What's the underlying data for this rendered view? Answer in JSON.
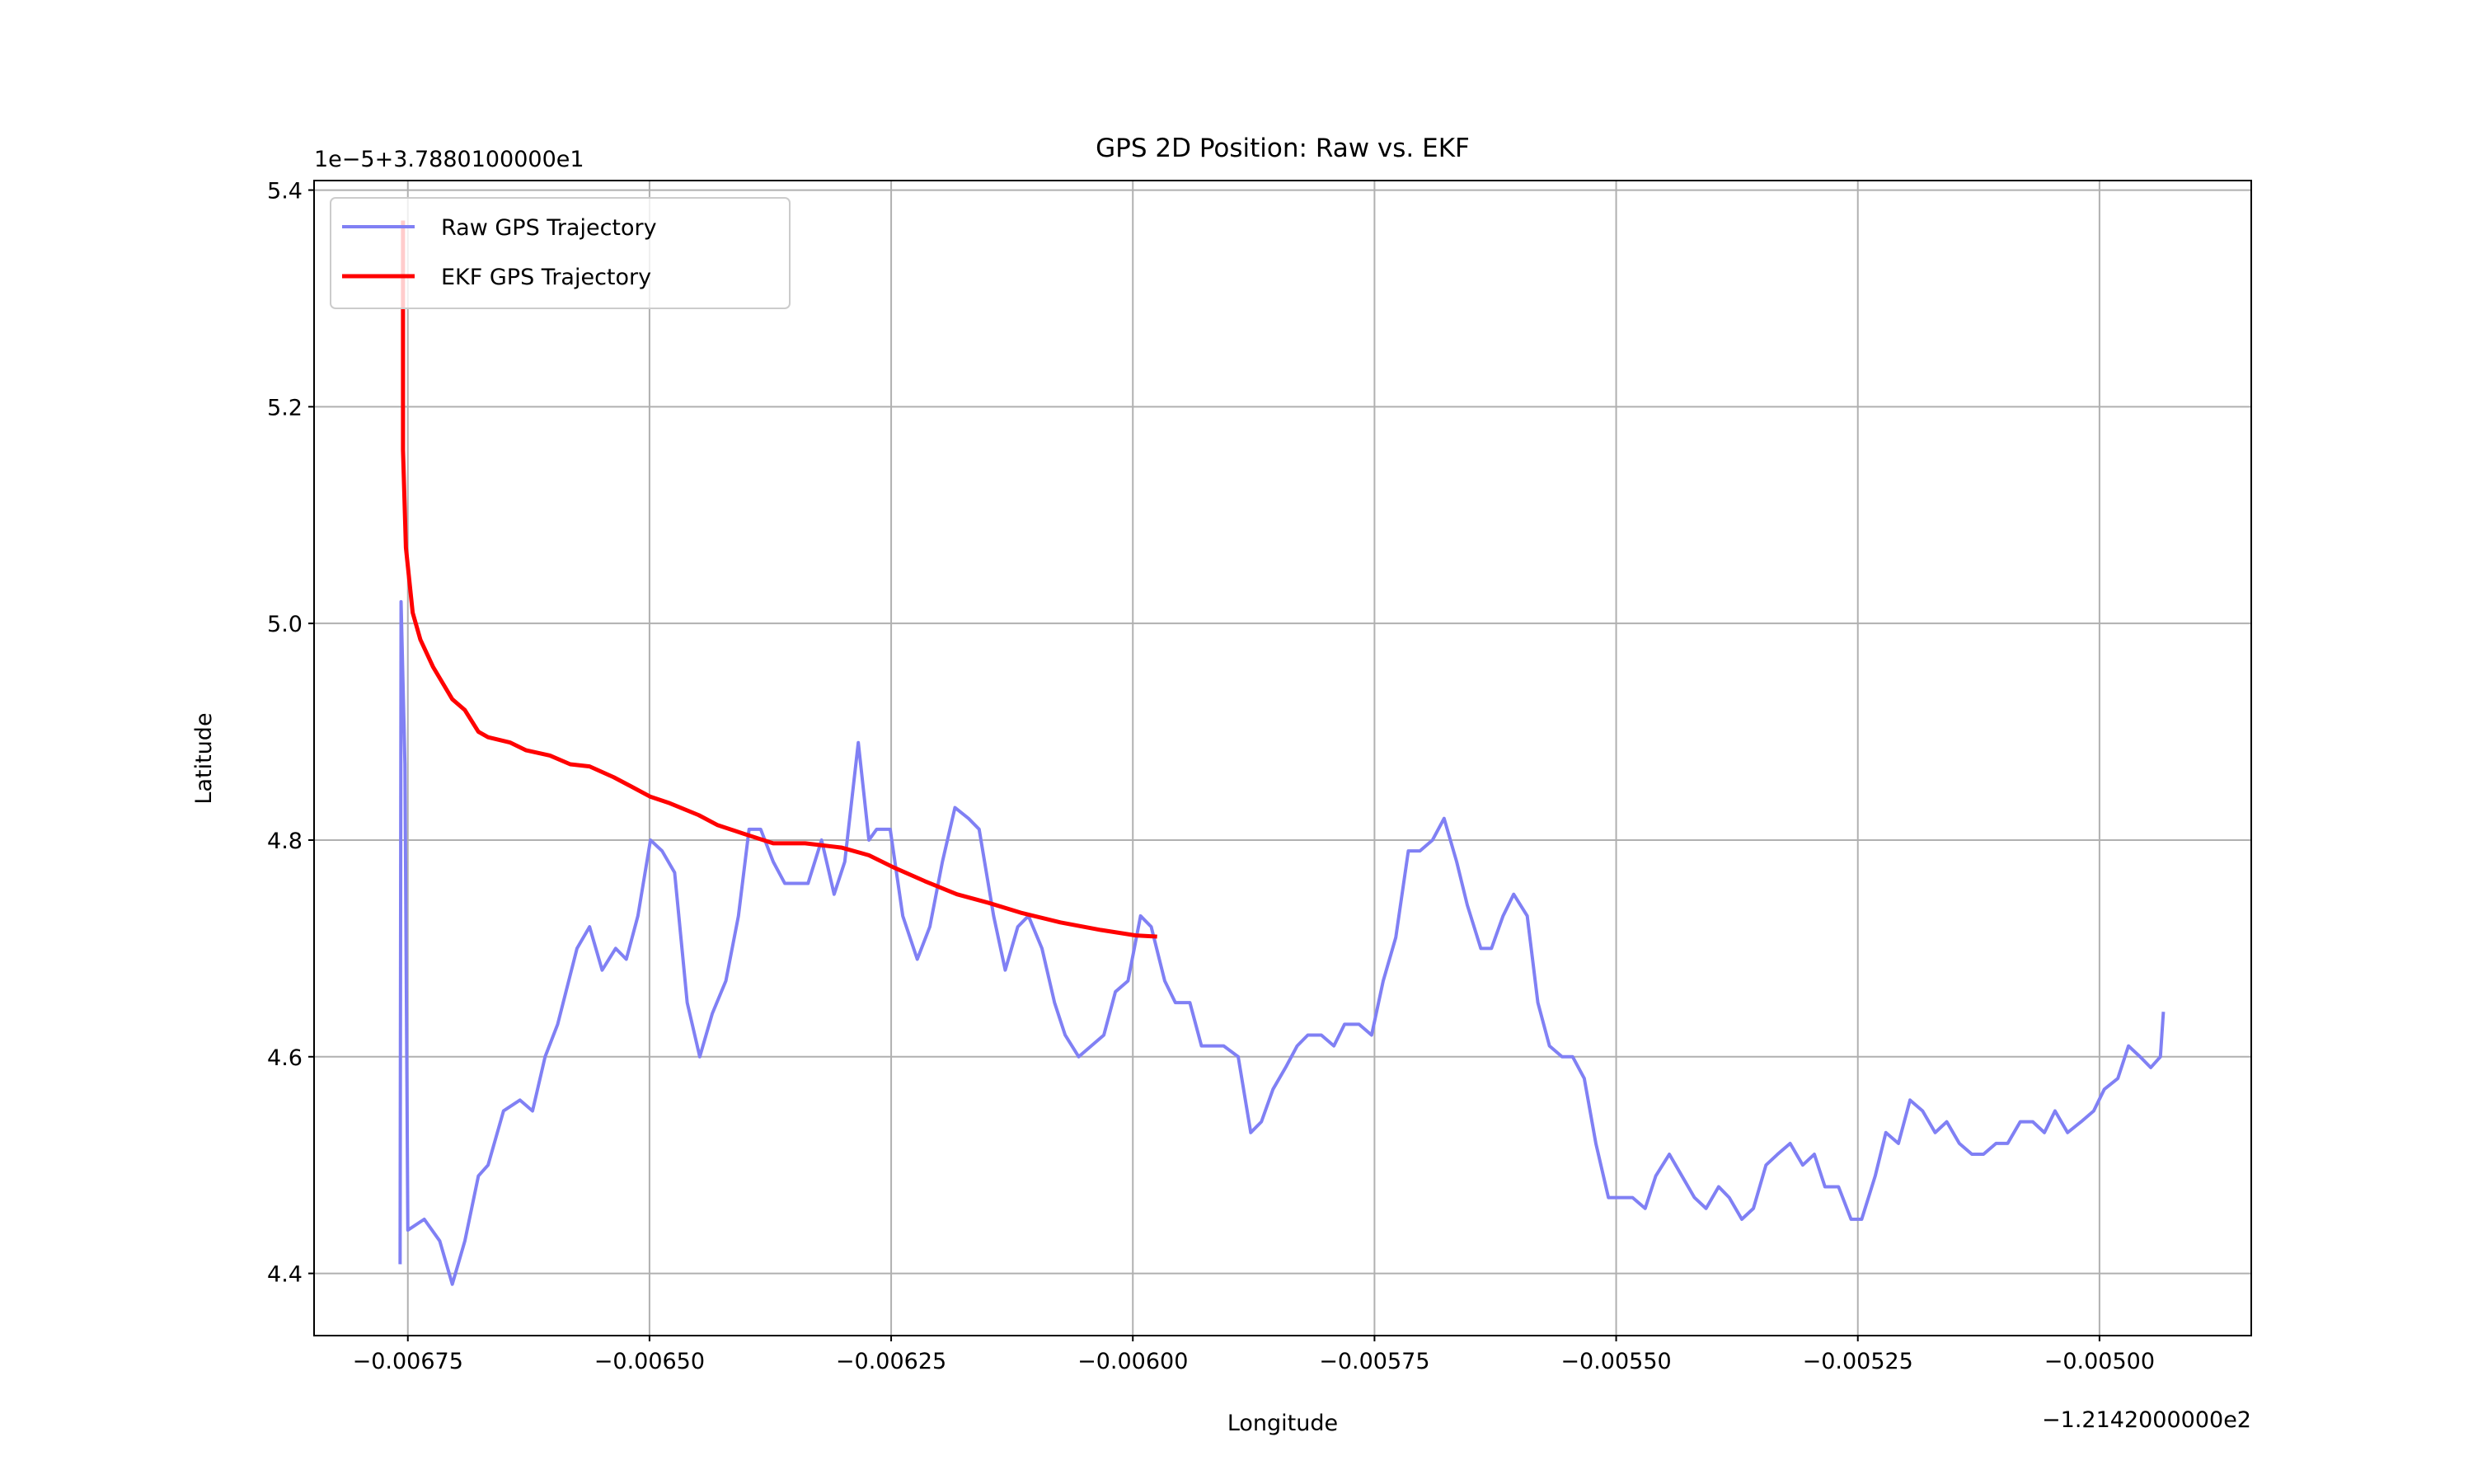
{
  "chart_data": {
    "type": "line",
    "title": "GPS 2D Position: Raw vs. EKF",
    "x_label": "Longitude",
    "y_label": "Latitude",
    "x_offset_label": "−1.2142000000e2",
    "y_offset_label": "1e−5+3.7880100000e1",
    "xlim": [
      -0.006847,
      -0.004843
    ],
    "ylim": [
      4.3426,
      5.4088
    ],
    "xticks": [
      {
        "value": -0.00675,
        "label": "−0.00675"
      },
      {
        "value": -0.0065,
        "label": "−0.00650"
      },
      {
        "value": -0.00625,
        "label": "−0.00625"
      },
      {
        "value": -0.006,
        "label": "−0.00600"
      },
      {
        "value": -0.00575,
        "label": "−0.00575"
      },
      {
        "value": -0.0055,
        "label": "−0.00550"
      },
      {
        "value": -0.00525,
        "label": "−0.00525"
      },
      {
        "value": -0.005,
        "label": "−0.00500"
      }
    ],
    "yticks": [
      4.4,
      4.6,
      4.8,
      {
        "value": 5,
        "label": "5.0"
      },
      5.2,
      5.4
    ],
    "grid": true,
    "legend": "upper left",
    "series": [
      {
        "name": "Raw GPS Trajectory",
        "color": "#8080f4",
        "width": 4,
        "x": [
          -0.006758,
          -0.006757,
          -0.006753,
          -0.00675,
          -0.006733,
          -0.006717,
          -0.006704,
          -0.006691,
          -0.006677,
          -0.006667,
          -0.006651,
          -0.006634,
          -0.006621,
          -0.006608,
          -0.006595,
          -0.006575,
          -0.006562,
          -0.006549,
          -0.006535,
          -0.006524,
          -0.006512,
          -0.006499,
          -0.006487,
          -0.006474,
          -0.006461,
          -0.006448,
          -0.006435,
          -0.006421,
          -0.006408,
          -0.006397,
          -0.006385,
          -0.006372,
          -0.00636,
          -0.006336,
          -0.006322,
          -0.006309,
          -0.006298,
          -0.006284,
          -0.006273,
          -0.006265,
          -0.006251,
          -0.006238,
          -0.006223,
          -0.00621,
          -0.006197,
          -0.006184,
          -0.00617,
          -0.006159,
          -0.006144,
          -0.006132,
          -0.006119,
          -0.006108,
          -0.006094,
          -0.006081,
          -0.00607,
          -0.006056,
          -0.006043,
          -0.00603,
          -0.006018,
          -0.006005,
          -0.005992,
          -0.005981,
          -0.005967,
          -0.005956,
          -0.005941,
          -0.005929,
          -0.005906,
          -0.005891,
          -0.005878,
          -0.005867,
          -0.005855,
          -0.005842,
          -0.00583,
          -0.005819,
          -0.005805,
          -0.005792,
          -0.005781,
          -0.005766,
          -0.005753,
          -0.005741,
          -0.005728,
          -0.005715,
          -0.005703,
          -0.00569,
          -0.005678,
          -0.005665,
          -0.005654,
          -0.00564,
          -0.005629,
          -0.005617,
          -0.005606,
          -0.005592,
          -0.005581,
          -0.005569,
          -0.005556,
          -0.005545,
          -0.005533,
          -0.005521,
          -0.005508,
          -0.005483,
          -0.00547,
          -0.005459,
          -0.005445,
          -0.005432,
          -0.005419,
          -0.005407,
          -0.005394,
          -0.005383,
          -0.00537,
          -0.005358,
          -0.005345,
          -0.005333,
          -0.00532,
          -0.005307,
          -0.005295,
          -0.005284,
          -0.00527,
          -0.005257,
          -0.005246,
          -0.005232,
          -0.005221,
          -0.005208,
          -0.005196,
          -0.005183,
          -0.00517,
          -0.005158,
          -0.005145,
          -0.005132,
          -0.00512,
          -0.005107,
          -0.005095,
          -0.005082,
          -0.005069,
          -0.005057,
          -0.005046,
          -0.005033,
          -0.005019,
          -0.005006,
          -0.004995,
          -0.004981,
          -0.00497,
          -0.004958,
          -0.004947,
          -0.004937,
          -0.004934
        ],
        "values": [
          4.41,
          5.02,
          4.87,
          4.44,
          4.45,
          4.43,
          4.39,
          4.43,
          4.49,
          4.5,
          4.55,
          4.56,
          4.55,
          4.6,
          4.63,
          4.7,
          4.72,
          4.68,
          4.7,
          4.69,
          4.73,
          4.8,
          4.79,
          4.77,
          4.65,
          4.6,
          4.64,
          4.67,
          4.73,
          4.81,
          4.81,
          4.78,
          4.76,
          4.76,
          4.8,
          4.75,
          4.78,
          4.89,
          4.8,
          4.81,
          4.81,
          4.73,
          4.69,
          4.72,
          4.78,
          4.83,
          4.82,
          4.81,
          4.73,
          4.68,
          4.72,
          4.73,
          4.7,
          4.65,
          4.62,
          4.6,
          4.61,
          4.62,
          4.66,
          4.67,
          4.73,
          4.72,
          4.67,
          4.65,
          4.65,
          4.61,
          4.61,
          4.6,
          4.53,
          4.54,
          4.57,
          4.59,
          4.61,
          4.62,
          4.62,
          4.61,
          4.63,
          4.63,
          4.62,
          4.67,
          4.71,
          4.79,
          4.79,
          4.8,
          4.82,
          4.78,
          4.74,
          4.7,
          4.7,
          4.73,
          4.75,
          4.73,
          4.65,
          4.61,
          4.6,
          4.6,
          4.58,
          4.52,
          4.47,
          4.47,
          4.46,
          4.49,
          4.51,
          4.49,
          4.47,
          4.46,
          4.48,
          4.47,
          4.45,
          4.46,
          4.5,
          4.51,
          4.52,
          4.5,
          4.51,
          4.48,
          4.48,
          4.45,
          4.45,
          4.49,
          4.53,
          4.52,
          4.56,
          4.55,
          4.53,
          4.54,
          4.52,
          4.51,
          4.51,
          4.52,
          4.52,
          4.54,
          4.54,
          4.53,
          4.55,
          4.53,
          4.54,
          4.55,
          4.57,
          4.58,
          4.61,
          4.6,
          4.59,
          4.6,
          4.64
        ]
      },
      {
        "name": "EKF GPS Trajectory",
        "color": "#ff0000",
        "width": 5,
        "x": [
          -0.006755,
          -0.006755,
          -0.006752,
          -0.006745,
          -0.006737,
          -0.006724,
          -0.006704,
          -0.006691,
          -0.006677,
          -0.006667,
          -0.006644,
          -0.006628,
          -0.006603,
          -0.006582,
          -0.006562,
          -0.006537,
          -0.00652,
          -0.006499,
          -0.006479,
          -0.006449,
          -0.00643,
          -0.006403,
          -0.006372,
          -0.006339,
          -0.006301,
          -0.006273,
          -0.006248,
          -0.006215,
          -0.006182,
          -0.006149,
          -0.006116,
          -0.006075,
          -0.006033,
          -0.005997,
          -0.005977
        ],
        "values": [
          5.37,
          5.16,
          5.07,
          5.01,
          4.985,
          4.96,
          4.93,
          4.92,
          4.9,
          4.895,
          4.89,
          4.883,
          4.878,
          4.87,
          4.868,
          4.858,
          4.85,
          4.84,
          4.834,
          4.823,
          4.814,
          4.806,
          4.797,
          4.797,
          4.793,
          4.786,
          4.775,
          4.762,
          4.75,
          4.742,
          4.733,
          4.724,
          4.717,
          4.712,
          4.711
        ]
      }
    ]
  }
}
